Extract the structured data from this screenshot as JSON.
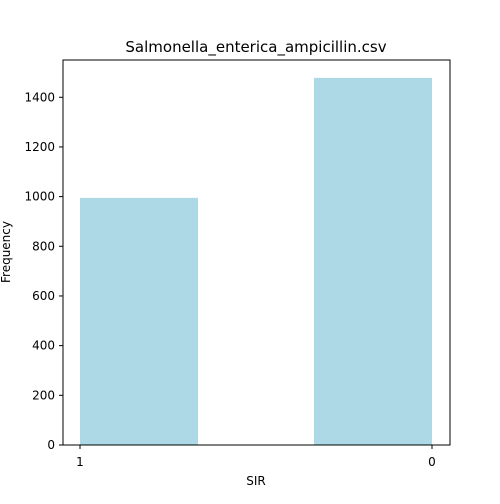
{
  "chart_data": {
    "type": "bar",
    "title": "Salmonella_enterica_ampicillin.csv",
    "xlabel": "SIR",
    "ylabel": "Frequency",
    "categories": [
      "1",
      "0"
    ],
    "values": [
      995,
      1478
    ],
    "ylim": [
      0,
      1550
    ],
    "yticks": [
      0,
      200,
      400,
      600,
      800,
      1000,
      1200,
      1400
    ],
    "xticks": [
      "1",
      "0"
    ],
    "grid": false,
    "bar_color": "#add8e6",
    "bar_opacity": 1.0
  }
}
